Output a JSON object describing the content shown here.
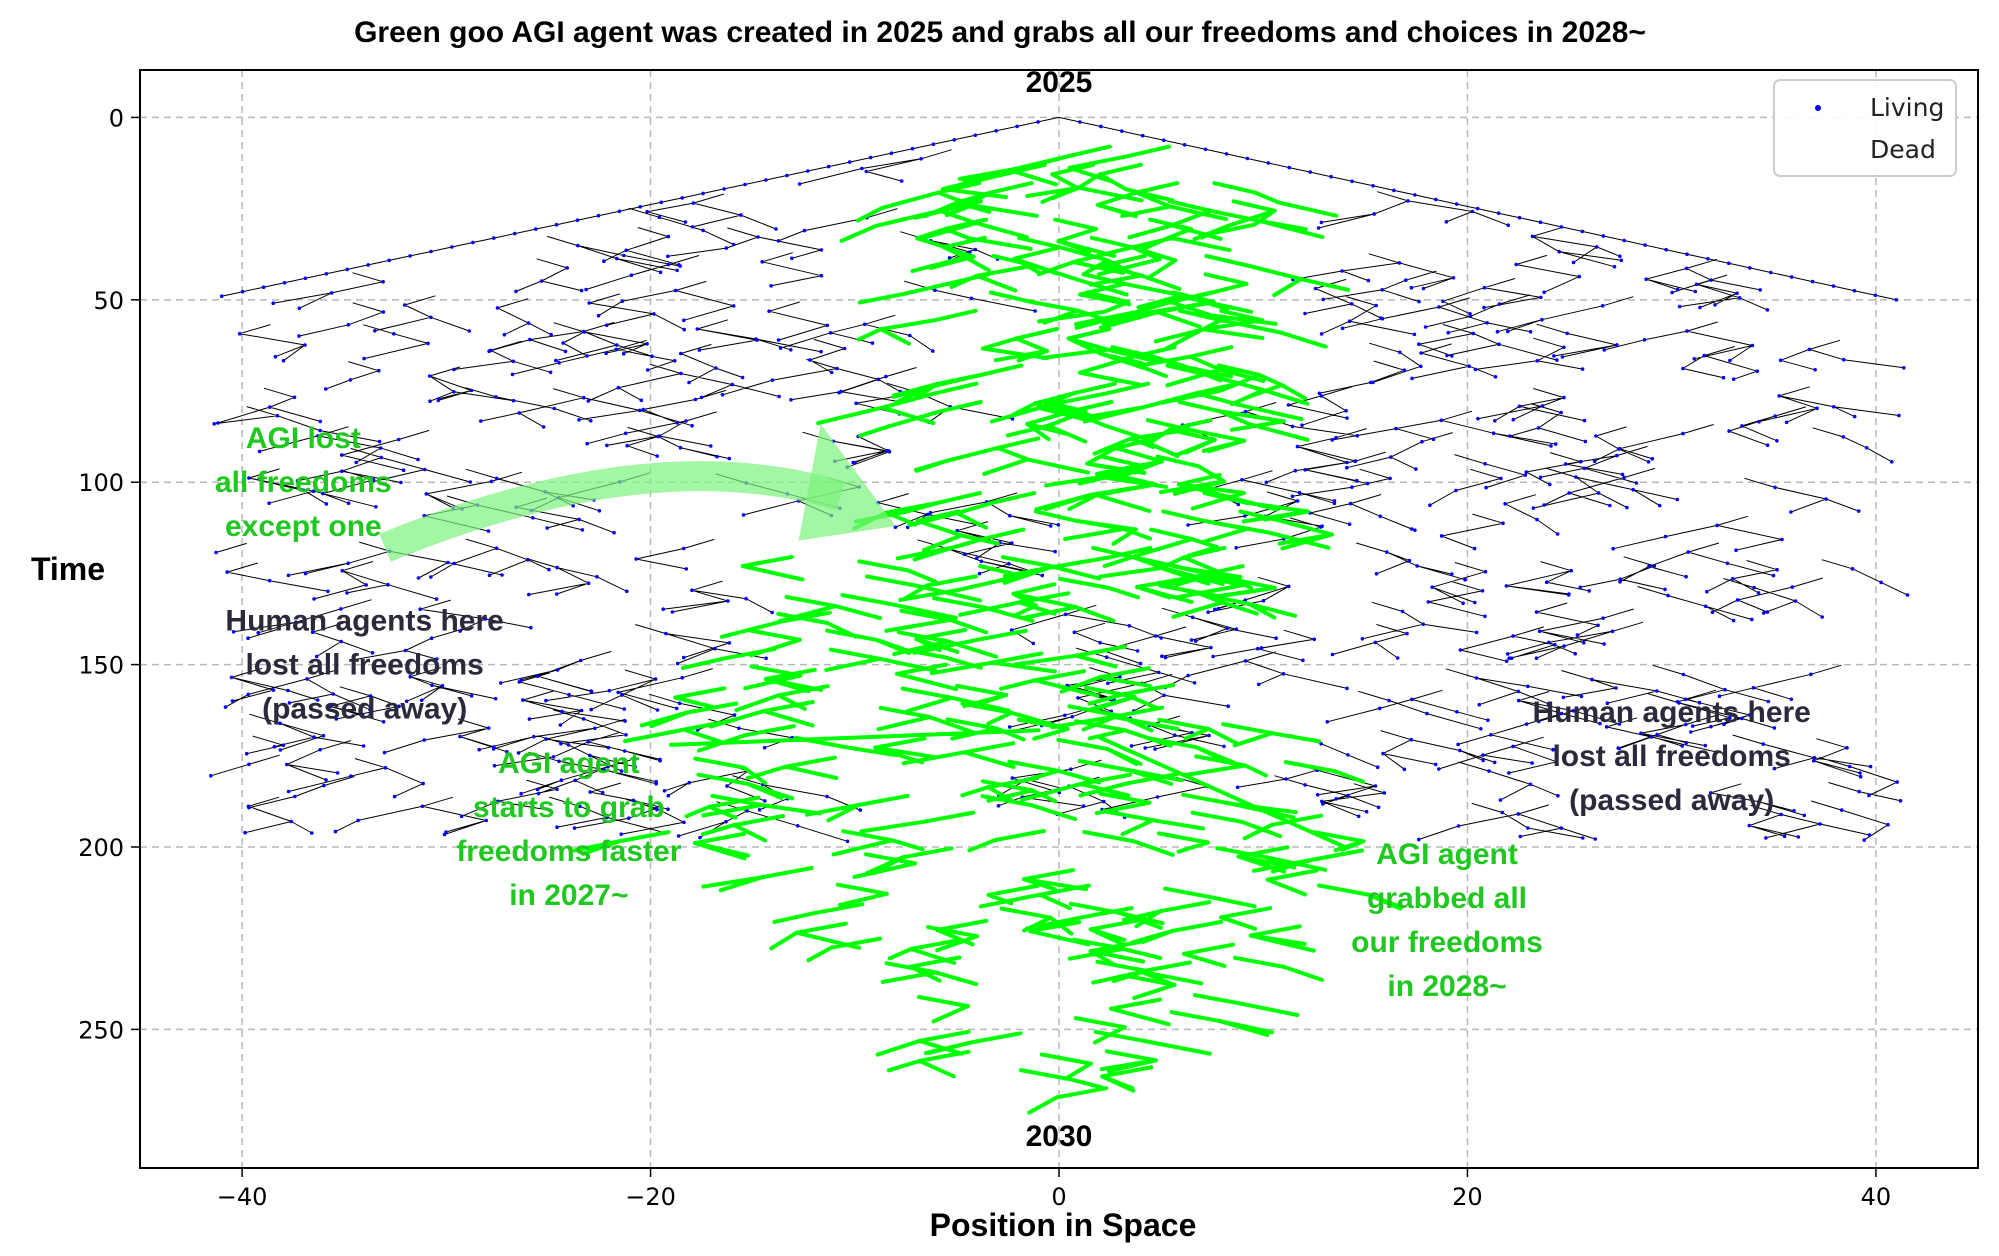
{
  "chart_data": {
    "type": "scatter",
    "title": "Green goo AGI agent was created in 2025 and grabs all our freedoms and choices in 2028~",
    "xlabel": "Position in Space",
    "ylabel": "Time",
    "xlim": [
      -45,
      45
    ],
    "ylim": [
      288,
      -13
    ],
    "y_inverted": true,
    "x_ticks": [
      -40,
      -20,
      0,
      20,
      40
    ],
    "x_tick_labels": [
      "−40",
      "−20",
      "0",
      "20",
      "40"
    ],
    "y_ticks": [
      0,
      50,
      100,
      150,
      200,
      250
    ],
    "y_tick_labels": [
      "0",
      "50",
      "100",
      "150",
      "200",
      "250"
    ],
    "grid": true,
    "legend_placement": "top-right",
    "legend": [
      {
        "label": "Living",
        "marker": "dot",
        "color": "#0000ff"
      },
      {
        "label": "Dead",
        "marker": "none",
        "color": "#ffffff"
      }
    ],
    "series": [
      {
        "name": "Living",
        "color": "#0000ff"
      },
      {
        "name": "Dead",
        "color": "#ffffff"
      }
    ],
    "structure": {
      "description_of_marks": "branching tree of agents from (0,0); human branches black, AGI branches green",
      "root": [
        0,
        0
      ],
      "left_extent": [
        -41,
        49
      ],
      "right_extent": [
        41,
        50
      ],
      "bottom": [
        0,
        275
      ],
      "human_color": "#000000",
      "agi_color": "#00ff00"
    },
    "annotations": [
      {
        "text": "2025",
        "x": 0,
        "y": -7,
        "color": "#000000"
      },
      {
        "text": "2030",
        "x": 0,
        "y": 282,
        "color": "#000000"
      },
      {
        "lines": [
          "AGI lost",
          "all freedoms",
          "except one"
        ],
        "x": -37,
        "y": 100,
        "color": "#1ec81e"
      },
      {
        "lines": [
          "Human agents here",
          "lost all freedoms",
          "(passed away)"
        ],
        "x": -34,
        "y": 150,
        "color": "#2a2a3c"
      },
      {
        "lines": [
          "AGI agent",
          "starts to grab",
          "freedoms faster",
          "in 2027~"
        ],
        "x": -24,
        "y": 195,
        "color": "#1ec81e"
      },
      {
        "lines": [
          "Human agents here",
          "lost all freedoms",
          "(passed away)"
        ],
        "x": 30,
        "y": 175,
        "color": "#2a2a3c"
      },
      {
        "lines": [
          "AGI agent",
          "grabbed all",
          "our freedoms",
          "in 2028~"
        ],
        "x": 19,
        "y": 220,
        "color": "#1ec81e"
      }
    ],
    "arrow": {
      "from": [
        -33,
        118
      ],
      "to": [
        -8,
        112
      ],
      "color": "#7cf27c"
    }
  }
}
